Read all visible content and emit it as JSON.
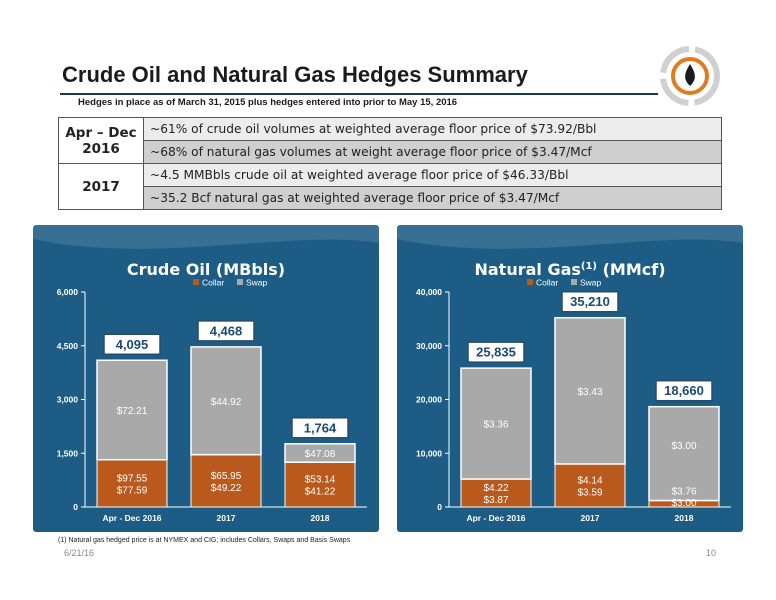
{
  "header": {
    "title": "Crude Oil and Natural Gas Hedges Summary",
    "subtitle": "Hedges in place as of March 31, 2015 plus hedges entered into prior to May 15, 2016"
  },
  "summary_table": [
    {
      "period": "Apr – Dec 2016",
      "rows": [
        "~61% of crude oil volumes at weighted average floor price of $73.92/Bbl",
        "~68% of natural gas volumes at weight average floor price of $3.47/Mcf"
      ]
    },
    {
      "period": "2017",
      "rows": [
        "~4.5 MMBbls crude oil at weighted average floor price of $46.33/Bbl",
        "~35.2 Bcf natural gas at weighted average floor price of $3.47/Mcf"
      ]
    }
  ],
  "colors": {
    "collar": "#b95a1c",
    "swap": "#a9a9a9",
    "panel": "#1d5d85",
    "rule": "#1a3a5c"
  },
  "chart_data": [
    {
      "type": "bar",
      "stacked": true,
      "title": "Crude Oil (MBbls)",
      "title_main": "Crude Oil (MBbls)",
      "title_sup": "",
      "title_tail": "",
      "categories": [
        "Apr - Dec 2016",
        "2017",
        "2018"
      ],
      "ylim": [
        0,
        6000
      ],
      "yticks": [
        0,
        1500,
        3000,
        4500,
        6000
      ],
      "ytick_labels": [
        "0",
        "1,500",
        "3,000",
        "4,500",
        "6,000"
      ],
      "legend": [
        "Collar",
        "Swap"
      ],
      "series": [
        {
          "name": "Collar",
          "values": [
            1320,
            1460,
            1250
          ],
          "labels": [
            [
              "$97.55",
              "$77.59"
            ],
            [
              "$65.95",
              "$49.22"
            ],
            [
              "$53.14",
              "$41.22"
            ]
          ]
        },
        {
          "name": "Swap",
          "values": [
            2775,
            3008,
            514
          ],
          "labels": [
            [
              "$72.21"
            ],
            [
              "$44.92"
            ],
            [
              "$47.08"
            ]
          ]
        }
      ],
      "totals": [
        "4,095",
        "4,468",
        "1,764"
      ],
      "total_values": [
        4095,
        4468,
        1764
      ]
    },
    {
      "type": "bar",
      "stacked": true,
      "title": "Natural Gas(1) (MMcf)",
      "title_main": "Natural Gas",
      "title_sup": "(1)",
      "title_tail": " (MMcf)",
      "categories": [
        "Apr - Dec 2016",
        "2017",
        "2018"
      ],
      "ylim": [
        0,
        40000
      ],
      "yticks": [
        0,
        10000,
        20000,
        30000,
        40000
      ],
      "ytick_labels": [
        "0",
        "10,000",
        "20,000",
        "30,000",
        "40,000"
      ],
      "legend": [
        "Collar",
        "Swap"
      ],
      "series": [
        {
          "name": "Collar",
          "values": [
            5200,
            8000,
            1200
          ],
          "labels": [
            [
              "$4.22",
              "$3.87"
            ],
            [
              "$4.14",
              "$3.59"
            ],
            [
              "$3.76",
              "$3.00"
            ]
          ]
        },
        {
          "name": "Swap",
          "values": [
            20635,
            27210,
            17460
          ],
          "labels": [
            [
              "$3.36"
            ],
            [
              "$3.43"
            ],
            [
              "$3.00"
            ]
          ]
        }
      ],
      "totals": [
        "25,835",
        "35,210",
        "18,660"
      ],
      "total_values": [
        25835,
        35210,
        18660
      ]
    }
  ],
  "footer": {
    "footnote": "(1)  Natural gas hedged price is at NYMEX and CIG; includes Collars, Swaps and Basis Swaps",
    "date": "6/21/16",
    "page": "10"
  }
}
